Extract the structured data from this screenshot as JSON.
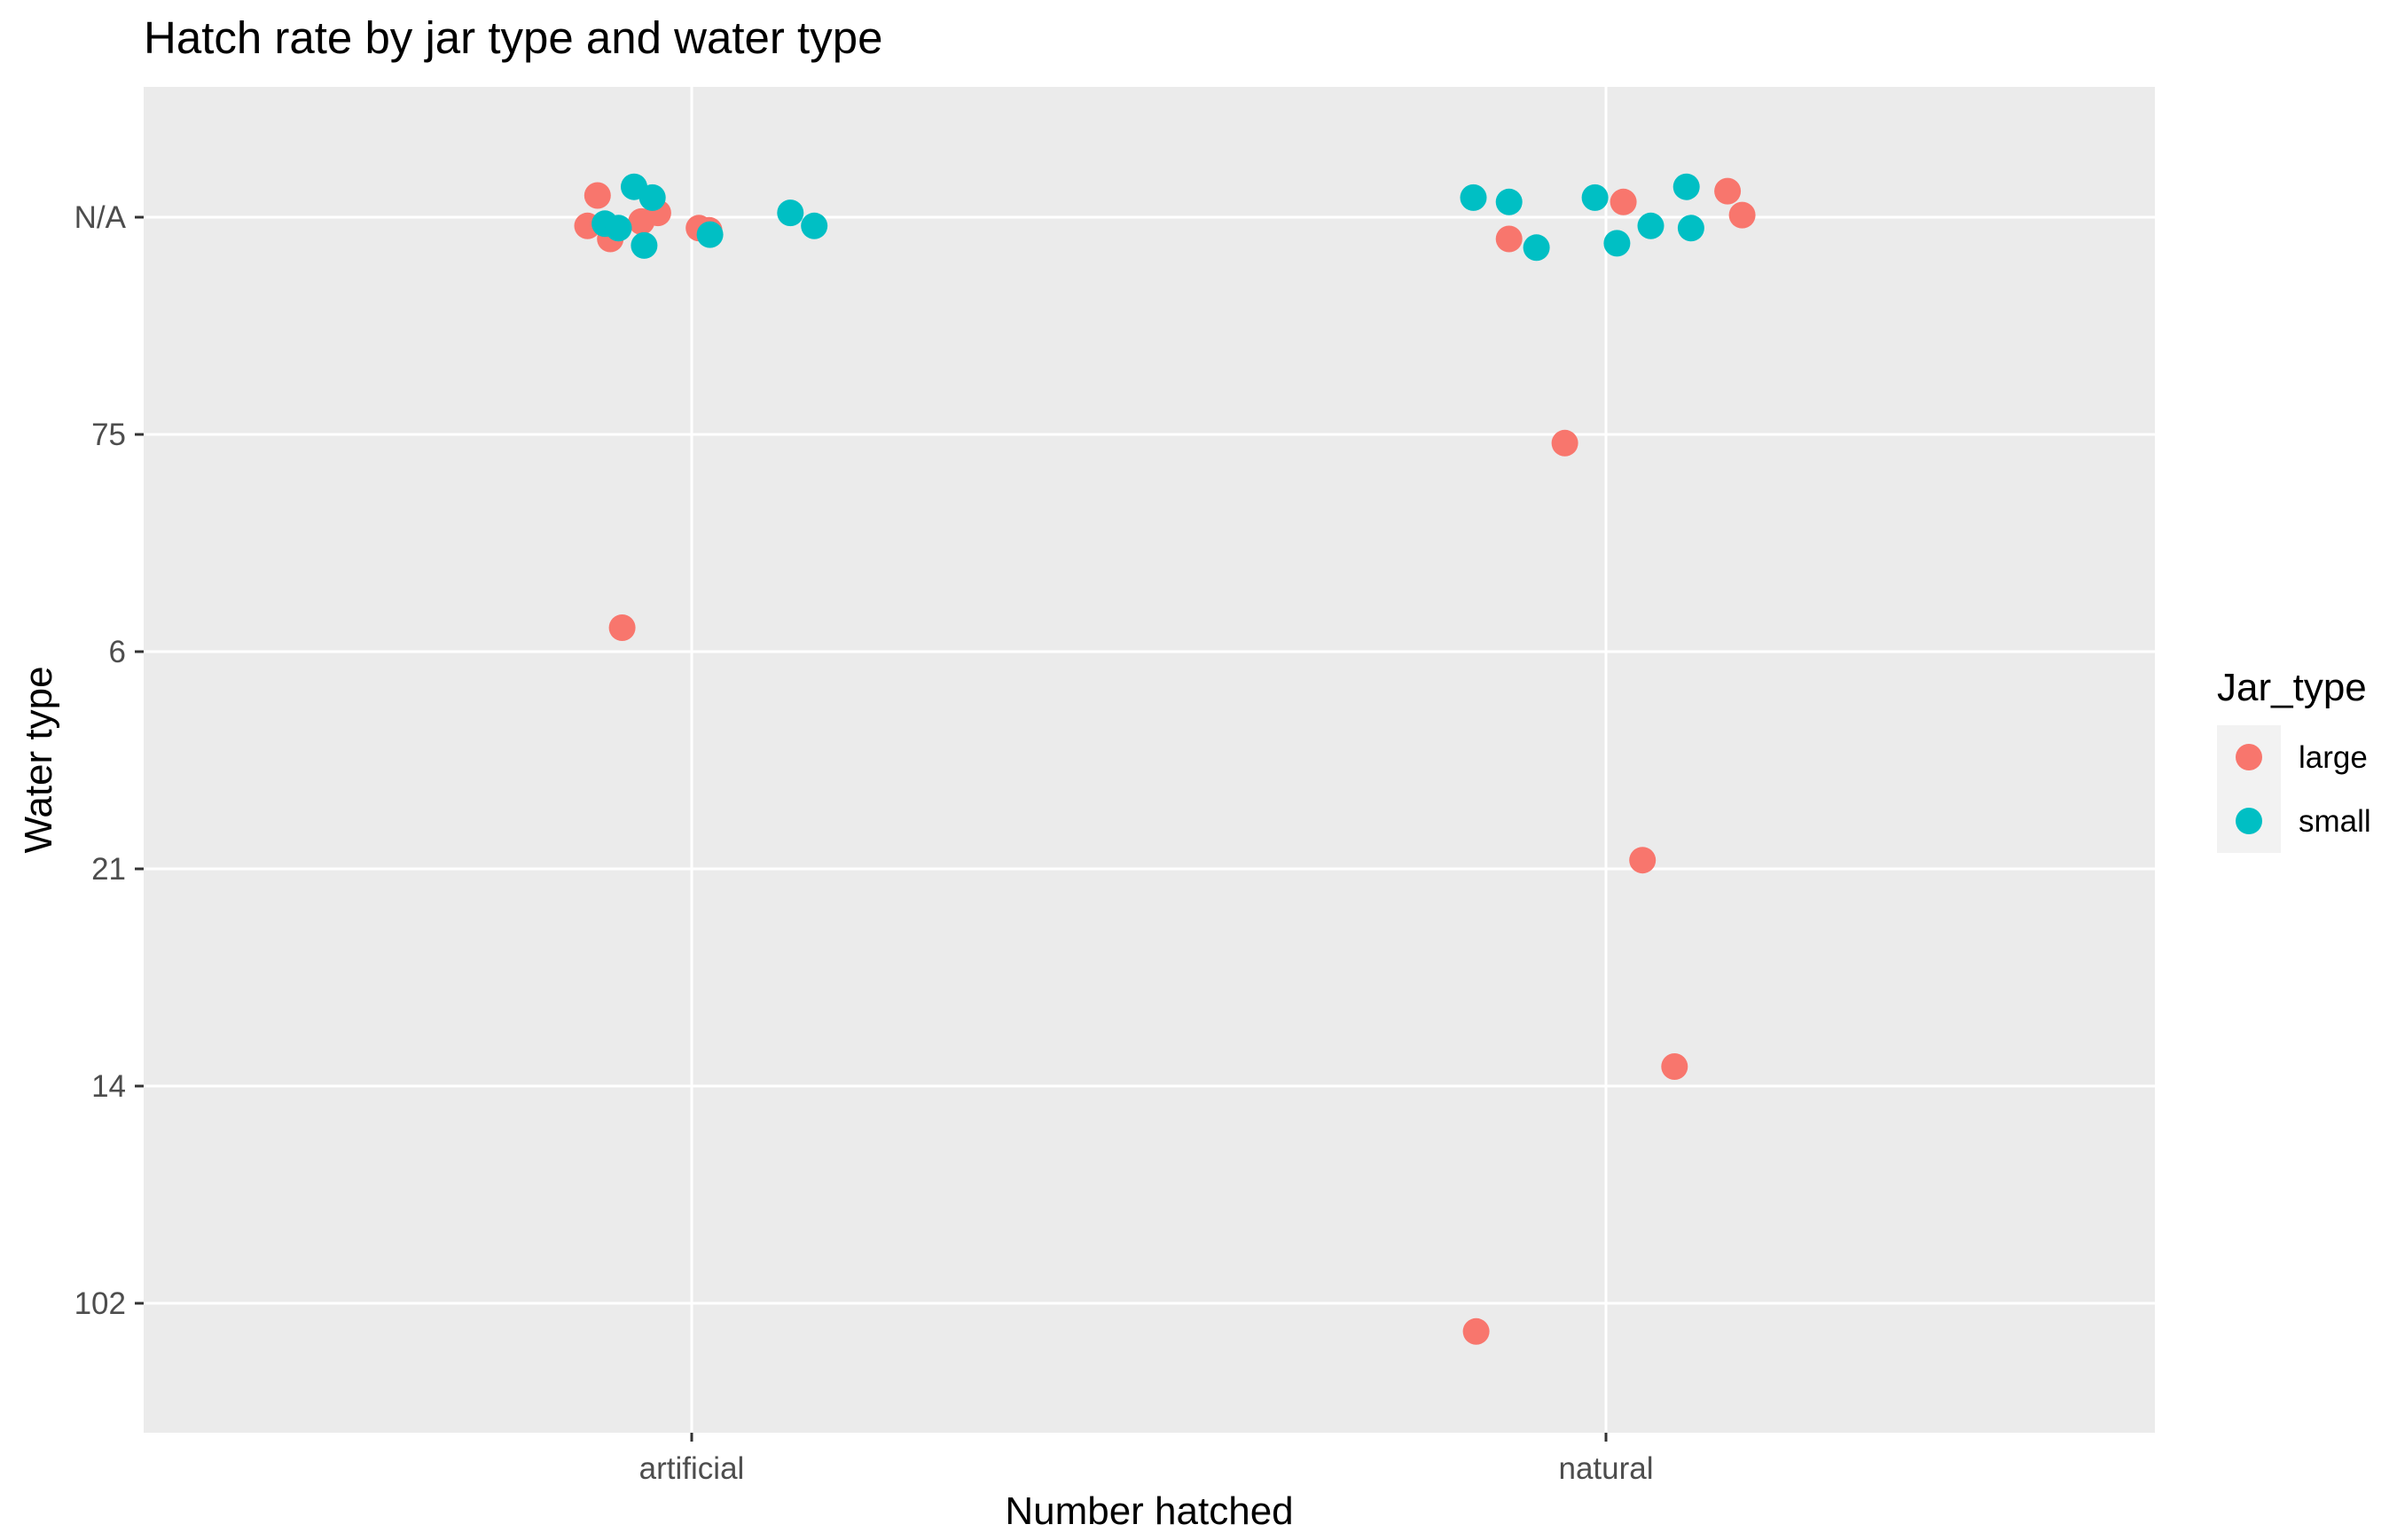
{
  "chart_data": {
    "type": "scatter",
    "title": "Hatch rate by jar type and water type",
    "xlabel": "Number hatched",
    "ylabel": "Water type",
    "x_categories": [
      "artificial",
      "natural"
    ],
    "y_categories": [
      "N/A",
      "75",
      "6",
      "21",
      "14",
      "102"
    ],
    "grid": true,
    "legend": {
      "title": "Jar_type",
      "placement": "right",
      "entries": [
        {
          "label": "large",
          "color": "#F8766D"
        },
        {
          "label": "small",
          "color": "#00BFC4"
        }
      ]
    },
    "series": [
      {
        "name": "large",
        "color": "#F8766D",
        "points": [
          {
            "x": "artificial",
            "y": "N/A",
            "jx": -0.103,
            "jy": 0.1
          },
          {
            "x": "artificial",
            "y": "N/A",
            "jx": -0.114,
            "jy": -0.04
          },
          {
            "x": "artificial",
            "y": "N/A",
            "jx": -0.089,
            "jy": -0.1
          },
          {
            "x": "artificial",
            "y": "N/A",
            "jx": -0.055,
            "jy": -0.02
          },
          {
            "x": "artificial",
            "y": "N/A",
            "jx": -0.037,
            "jy": 0.02
          },
          {
            "x": "artificial",
            "y": "N/A",
            "jx": 0.008,
            "jy": -0.05
          },
          {
            "x": "artificial",
            "y": "N/A",
            "jx": 0.019,
            "jy": -0.06
          },
          {
            "x": "artificial",
            "y": "6",
            "jx": -0.076,
            "jy": 0.11
          },
          {
            "x": "natural",
            "y": "N/A",
            "jx": -0.106,
            "jy": -0.1
          },
          {
            "x": "natural",
            "y": "N/A",
            "jx": 0.019,
            "jy": 0.07
          },
          {
            "x": "natural",
            "y": "N/A",
            "jx": 0.133,
            "jy": 0.12
          },
          {
            "x": "natural",
            "y": "N/A",
            "jx": 0.149,
            "jy": 0.01
          },
          {
            "x": "natural",
            "y": "75",
            "jx": -0.045,
            "jy": -0.04
          },
          {
            "x": "natural",
            "y": "21",
            "jx": 0.04,
            "jy": 0.04
          },
          {
            "x": "natural",
            "y": "14",
            "jx": 0.075,
            "jy": 0.09
          },
          {
            "x": "natural",
            "y": "102",
            "jx": -0.142,
            "jy": -0.13
          }
        ]
      },
      {
        "name": "small",
        "color": "#00BFC4",
        "points": [
          {
            "x": "artificial",
            "y": "N/A",
            "jx": -0.095,
            "jy": -0.03
          },
          {
            "x": "artificial",
            "y": "N/A",
            "jx": -0.08,
            "jy": -0.05
          },
          {
            "x": "artificial",
            "y": "N/A",
            "jx": -0.063,
            "jy": 0.14
          },
          {
            "x": "artificial",
            "y": "N/A",
            "jx": -0.043,
            "jy": 0.09
          },
          {
            "x": "artificial",
            "y": "N/A",
            "jx": -0.052,
            "jy": -0.13
          },
          {
            "x": "artificial",
            "y": "N/A",
            "jx": 0.02,
            "jy": -0.08
          },
          {
            "x": "artificial",
            "y": "N/A",
            "jx": 0.108,
            "jy": 0.02
          },
          {
            "x": "artificial",
            "y": "N/A",
            "jx": 0.134,
            "jy": -0.04
          },
          {
            "x": "natural",
            "y": "N/A",
            "jx": -0.145,
            "jy": 0.09
          },
          {
            "x": "natural",
            "y": "N/A",
            "jx": -0.106,
            "jy": 0.07
          },
          {
            "x": "natural",
            "y": "N/A",
            "jx": -0.076,
            "jy": -0.14
          },
          {
            "x": "natural",
            "y": "N/A",
            "jx": -0.012,
            "jy": 0.09
          },
          {
            "x": "natural",
            "y": "N/A",
            "jx": 0.012,
            "jy": -0.12
          },
          {
            "x": "natural",
            "y": "N/A",
            "jx": 0.049,
            "jy": -0.04
          },
          {
            "x": "natural",
            "y": "N/A",
            "jx": 0.088,
            "jy": 0.14
          },
          {
            "x": "natural",
            "y": "N/A",
            "jx": 0.093,
            "jy": -0.05
          }
        ]
      }
    ]
  }
}
